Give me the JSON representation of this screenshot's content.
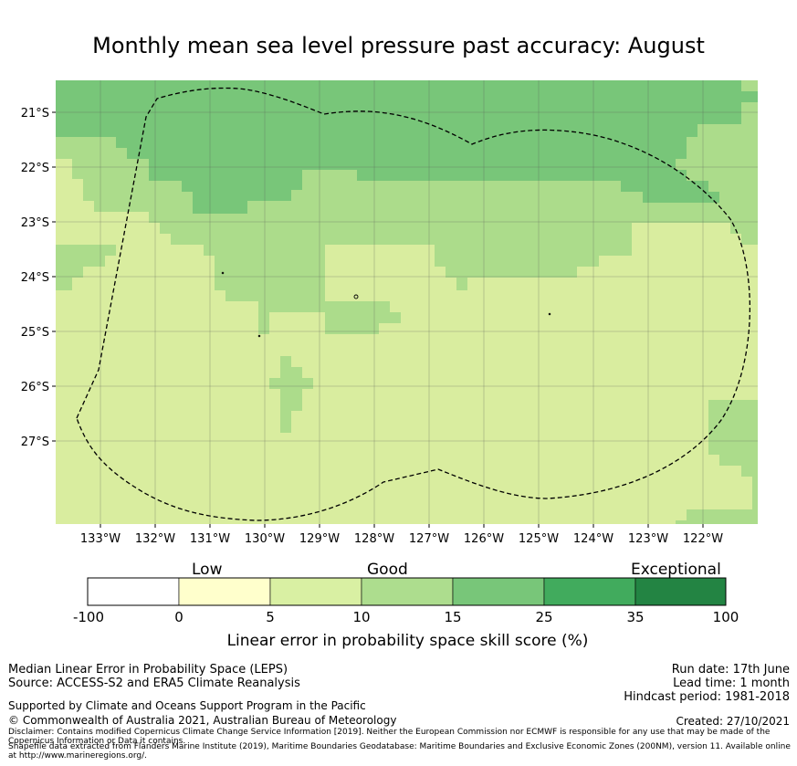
{
  "title": "Monthly mean sea level pressure past accuracy: August",
  "map": {
    "lat_labels": [
      "21°S",
      "22°S",
      "23°S",
      "24°S",
      "25°S",
      "26°S",
      "27°S"
    ],
    "lon_labels": [
      "133°W",
      "132°W",
      "131°W",
      "130°W",
      "129°W",
      "128°W",
      "127°W",
      "126°W",
      "125°W",
      "124°W",
      "123°W",
      "122°W"
    ],
    "colors": {
      "band_5_10": "#d9ed9f",
      "band_10_15": "#acdc8b",
      "band_15_25": "#78c679",
      "boundary": "#000000"
    }
  },
  "colorbar": {
    "categories": [
      "Low",
      "Good",
      "Exceptional"
    ],
    "ticks": [
      "-100",
      "0",
      "5",
      "10",
      "15",
      "25",
      "35",
      "100"
    ],
    "colors": [
      "#ffffff",
      "#ffffcc",
      "#d9f0a3",
      "#addd8e",
      "#78c679",
      "#41ab5d",
      "#238443"
    ],
    "label": "Linear error in probability space skill score (%)"
  },
  "footer": {
    "method": "Median Linear Error in Probability Space (LEPS)",
    "source": "Source: ACCESS-S2 and ERA5 Climate Reanalysis",
    "support": "Supported by Climate and Oceans Support Program in the Pacific",
    "copyright": "© Commonwealth of Australia 2021, Australian Bureau of Meteorology",
    "disclaimer": "Disclaimer: Contains modified Copernicus Climate Change Service Information [2019]. Neither the European Commission nor ECMWF is responsible for any use that may be made of the Copernicus Information or Data it contains.",
    "shapefile": "Shapefile data extracted from Flanders Marine Institute (2019), Maritime Boundaries Geodatabase: Maritime Boundaries and Exclusive Economic Zones (200NM), version 11. Available online at http://www.marineregions.org/.",
    "run_date": "Run date: 17th June",
    "lead_time": "Lead time: 1 month",
    "hindcast": "Hindcast period: 1981-2018",
    "created": "Created: 27/10/2021"
  }
}
